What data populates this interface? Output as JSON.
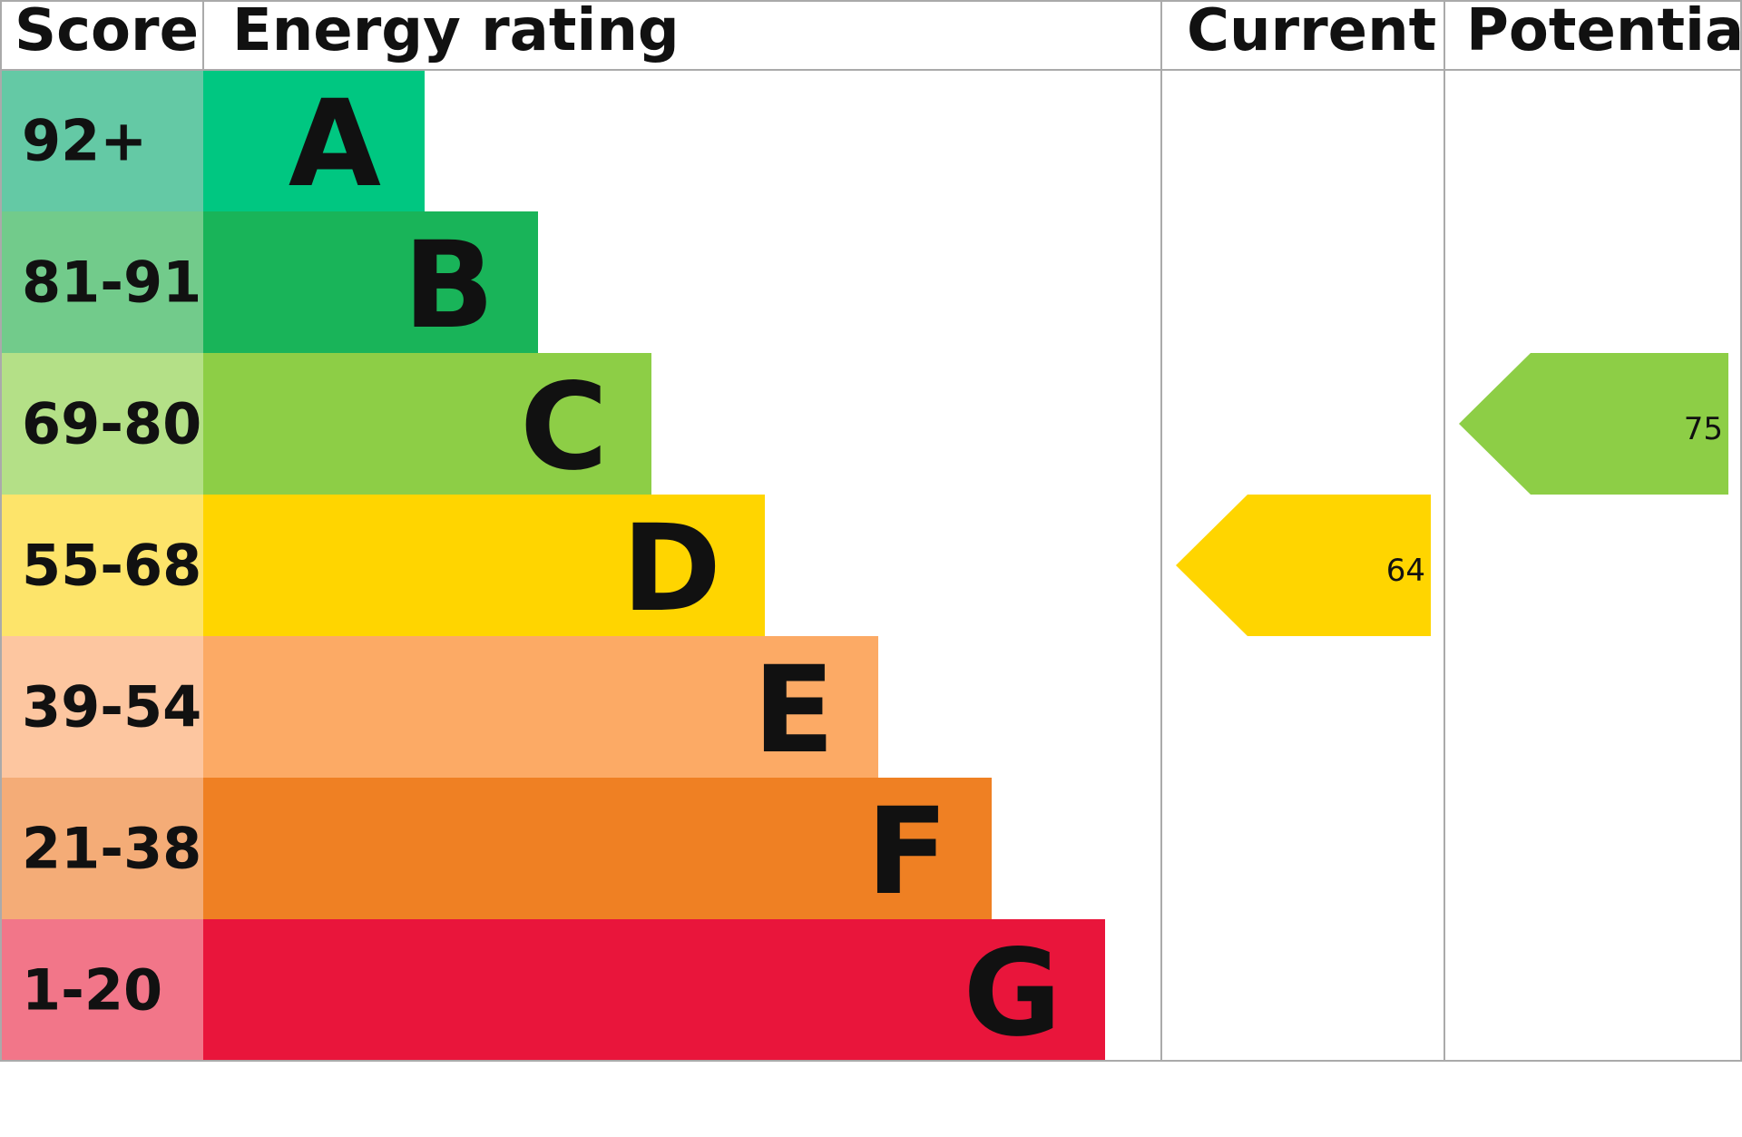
{
  "chart_data": {
    "type": "epc",
    "headers": [
      "Score",
      "Energy rating",
      "Current",
      "Potential"
    ],
    "bands": [
      {
        "score": "92+",
        "letter": "A",
        "color": "#00c781",
        "score_color": "#64c9a5"
      },
      {
        "score": "81-91",
        "letter": "B",
        "color": "#19b459",
        "score_color": "#72cb8b"
      },
      {
        "score": "69-80",
        "letter": "C",
        "color": "#8dce46",
        "score_color": "#b4e087"
      },
      {
        "score": "55-68",
        "letter": "D",
        "color": "#ffd500",
        "score_color": "#fde46a"
      },
      {
        "score": "39-54",
        "letter": "E",
        "color": "#fcaa65",
        "score_color": "#fdc6a0"
      },
      {
        "score": "21-38",
        "letter": "F",
        "color": "#ef8023",
        "score_color": "#f4ac77"
      },
      {
        "score": "1-20",
        "letter": "G",
        "color": "#e9153b",
        "score_color": "#f27689"
      }
    ],
    "current": 64,
    "potential": 75
  }
}
